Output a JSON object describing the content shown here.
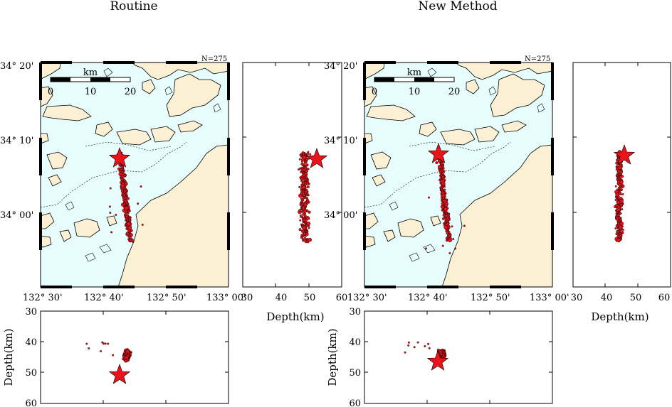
{
  "colors": {
    "sea": "#e6fcfd",
    "land": "#fbf0d4",
    "quake": "#e2141b",
    "star": "#e8141c",
    "frame": "#000000"
  },
  "panels": [
    {
      "title": "Routine",
      "count": "N=275",
      "scale": {
        "label": "km",
        "ticks": [
          "0",
          "10",
          "20"
        ]
      },
      "lat_labels": [
        "34° 20'",
        "34° 10'",
        "34° 00'"
      ],
      "lon_labels": [
        "132° 30'",
        "132° 40'",
        "132° 50'",
        "133° 00'"
      ],
      "side": {
        "ticks": [
          "30",
          "40",
          "50",
          "60"
        ],
        "xlabel": "Depth(km)"
      },
      "bottom": {
        "ticks": [
          "30",
          "40",
          "50",
          "60"
        ],
        "ylabel": "Depth(km)"
      }
    },
    {
      "title": "New Method",
      "count": "N=275",
      "scale": {
        "label": "km",
        "ticks": [
          "0",
          "10",
          "20"
        ]
      },
      "lat_labels": [
        "34° 20'",
        "34° 10'",
        "34° 00'"
      ],
      "lon_labels": [
        "132° 30'",
        "132° 40'",
        "132° 50'",
        "133° 00'"
      ],
      "side": {
        "ticks": [
          "30",
          "40",
          "50",
          "60"
        ],
        "xlabel": "Depth(km)"
      },
      "bottom": {
        "ticks": [
          "30",
          "40",
          "50",
          "60"
        ],
        "ylabel": "Depth(km)"
      }
    }
  ],
  "chart_data": [
    {
      "type": "scatter",
      "title": "Routine",
      "count": 275,
      "map": {
        "lon_range": [
          "132° 30'",
          "133° 00'"
        ],
        "lat_range": [
          "33° 50'",
          "34° 20'"
        ],
        "mainshock": {
          "lon_min": 41.0,
          "lat_min": 7.0
        },
        "cluster": {
          "lon_min_center": 42.0,
          "lat_min_range": [
            -4,
            7
          ]
        }
      },
      "depth_range_km": [
        30,
        60
      ],
      "mainshock_depth_km": 51,
      "hypocenter_depth_range_km": [
        41,
        51
      ]
    },
    {
      "type": "scatter",
      "title": "New Method",
      "count": 275,
      "map": {
        "lon_range": [
          "132° 30'",
          "133° 00'"
        ],
        "lat_range": [
          "33° 50'",
          "34° 20'"
        ],
        "mainshock": {
          "lon_min": 40.5,
          "lat_min": 7.5
        },
        "cluster": {
          "lon_min_center": 41.5,
          "lat_min_range": [
            -4,
            7
          ]
        }
      },
      "depth_range_km": [
        30,
        60
      ],
      "mainshock_depth_km": 46.5,
      "hypocenter_depth_range_km": [
        41,
        50
      ]
    }
  ]
}
